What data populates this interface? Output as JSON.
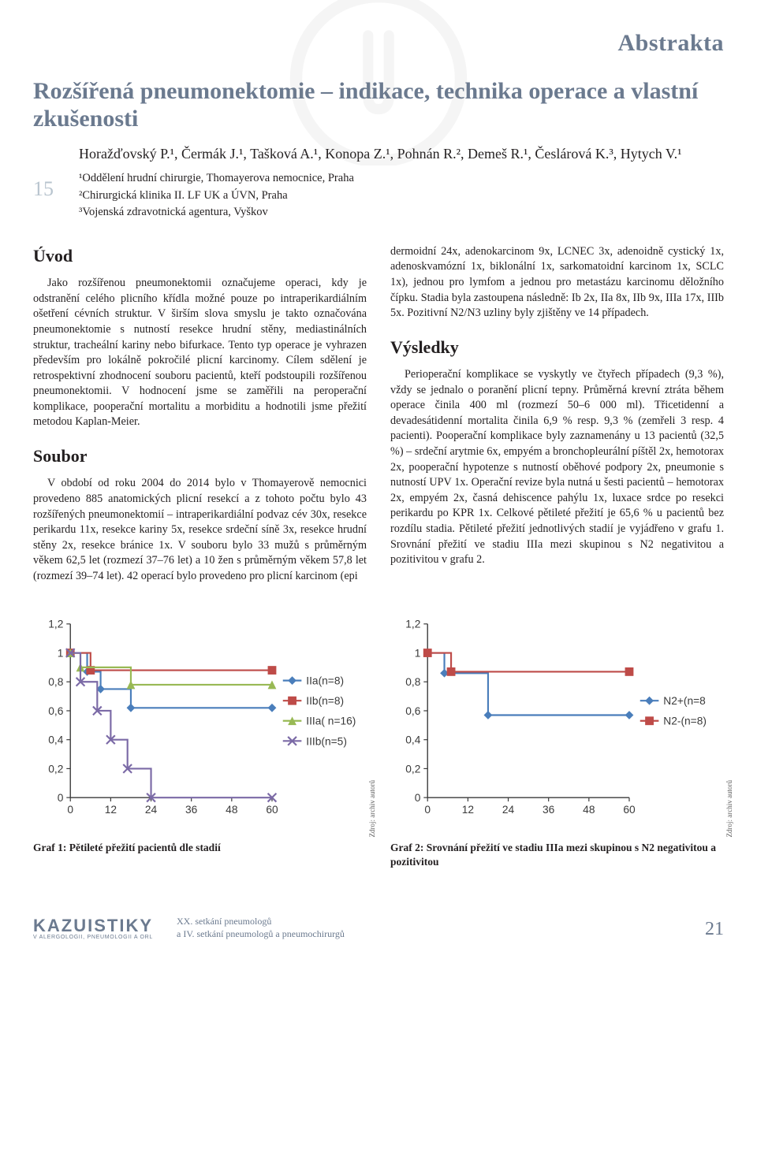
{
  "section_label": "Abstrakta",
  "article_title": "Rozšířená pneumonektomie – indikace, technika operace a vlastní zkušenosti",
  "side_page_num": "15",
  "authors": "Horažďovský P.¹, Čermák J.¹, Tašková A.¹, Konopa Z.¹, Pohnán R.², Demeš R.¹, Česlárová K.³, Hytych V.¹",
  "affil1": "¹Oddělení hrudní chirurgie, Thomayerova nemocnice, Praha",
  "affil2": "²Chirurgická klinika II. LF UK a ÚVN, Praha",
  "affil3": "³Vojenská zdravotnická agentura, Vyškov",
  "h_uvod": "Úvod",
  "p_uvod": "Jako rozšířenou pneumonektomii označujeme operaci, kdy je odstranění celého plicního křídla možné pouze po intraperikardiálním ošetření cévních struktur. V širším slova smyslu je takto označována pneumonektomie s nutností resekce hrudní stěny, mediastinálních struktur, tracheální kariny nebo bifurkace. Tento typ operace je vyhrazen především pro lokálně pokročilé plicní karcinomy. Cílem sdělení je retrospektivní zhodnocení souboru pacientů, kteří podstoupili rozšířenou pneumonektomii. V hodnocení jsme se zaměřili na peroperační komplikace, pooperační mortalitu a morbiditu a hodnotili jsme přežití metodou Kaplan-Meier.",
  "h_soubor": "Soubor",
  "p_soubor": "V období od roku 2004 do 2014 bylo v Thomayerově nemocnici provedeno 885 anatomických plicní resekcí a z tohoto počtu bylo 43 rozšířených pneumonektomií – intraperikardiální podvaz cév 30x, resekce perikardu 11x, resekce kariny 5x, resekce srdeční síně 3x, resekce hrudní stěny 2x, resekce bránice 1x. V souboru bylo 33 mužů s průměrným věkem 62,5 let (rozmezí 37–76 let) a 10 žen s průměrným věkem 57,8 let (rozmezí 39–74 let). 42 operací bylo provedeno pro plicní karcinom (epi",
  "p_right_top": "dermoidní 24x, adenokarcinom 9x, LCNEC 3x, adenoidně cystický 1x, adenoskvamózní 1x, biklonální 1x, sarkomatoidní karcinom 1x, SCLC 1x), jednou pro lymfom a jednou pro metastázu karcinomu děložního čípku. Stadia byla zastoupena následně: Ib 2x, IIa 8x, IIb 9x, IIIa 17x, IIIb 5x. Pozitivní N2/N3 uzliny byly zjištěny ve 14 případech.",
  "h_vysledky": "Výsledky",
  "p_vysledky": "Perioperační komplikace se vyskytly ve čtyřech případech (9,3 %), vždy se jednalo o poranění plicní tepny. Průměrná krevní ztráta během operace činila 400 ml (rozmezí 50–6 000 ml). Třicetidenní a devadesátidenní mortalita činila 6,9 % resp. 9,3 % (zemřeli 3 resp. 4 pacienti). Pooperační komplikace byly zaznamenány u 13 pacientů (32,5 %) – srdeční arytmie 6x, empyém a bronchopleurální píštěl 2x, hemotorax 2x, pooperační hypotenze s nutností oběhové podpory 2x, pneumonie s nutností UPV 1x. Operační revize byla nutná u šesti pacientů – hemotorax 2x, empyém 2x, časná dehiscence pahýlu 1x, luxace srdce po resekci perikardu po KPR 1x. Celkové pětileté přežití je 65,6 % u pacientů bez rozdílu stadia. Pětileté přežití jednotlivých stadií je vyjádřeno v grafu 1. Srovnání přežití ve stadiu IIIa mezi skupinou s N2 negativitou a pozitivitou v grafu 2.",
  "src_label": "Zdroj: archiv autorů",
  "chart1": {
    "type": "line-step",
    "xticks": [
      0,
      12,
      24,
      36,
      48,
      60
    ],
    "yticks_labels": [
      "0",
      "0,2",
      "0,4",
      "0,6",
      "0,8",
      "1",
      "1,2"
    ],
    "yticks": [
      0,
      0.2,
      0.4,
      0.6,
      0.8,
      1.0,
      1.2
    ],
    "ylim": [
      0,
      1.2
    ],
    "axis_color": "#3a3a3a",
    "grid": false,
    "marker_size": 5.5,
    "line_width": 2.2,
    "tick_fontsize": 14,
    "legend_fontsize": 14,
    "series": [
      {
        "label": "IIa(n=8)",
        "color": "#4a7ebb",
        "marker": "diamond",
        "x": [
          0,
          5,
          9,
          18,
          60
        ],
        "y": [
          1.0,
          0.87,
          0.75,
          0.62,
          0.62
        ]
      },
      {
        "label": "IIb(n=8)",
        "color": "#be4b48",
        "marker": "square",
        "x": [
          0,
          6,
          60
        ],
        "y": [
          1.0,
          0.88,
          0.88
        ]
      },
      {
        "label": "IIIa( n=16)",
        "color": "#98b954",
        "marker": "triangle",
        "x": [
          0,
          3,
          18,
          60
        ],
        "y": [
          1.0,
          0.9,
          0.78,
          0.78
        ]
      },
      {
        "label": "IIIb(n=5)",
        "color": "#7b6aa6",
        "marker": "x",
        "x": [
          0,
          3,
          8,
          12,
          17,
          24,
          60
        ],
        "y": [
          1.0,
          0.8,
          0.6,
          0.4,
          0.2,
          0.0,
          0.0
        ]
      }
    ],
    "caption": "Graf 1: Pětileté přežití pacientů dle stadií"
  },
  "chart2": {
    "type": "line-step",
    "xticks": [
      0,
      12,
      24,
      36,
      48,
      60
    ],
    "yticks_labels": [
      "0",
      "0,2",
      "0,4",
      "0,6",
      "0,8",
      "1",
      "1,2"
    ],
    "yticks": [
      0,
      0.2,
      0.4,
      0.6,
      0.8,
      1.0,
      1.2
    ],
    "ylim": [
      0,
      1.2
    ],
    "axis_color": "#3a3a3a",
    "grid": false,
    "marker_size": 5.5,
    "line_width": 2.2,
    "tick_fontsize": 14,
    "legend_fontsize": 14,
    "series": [
      {
        "label": "N2+(n=8",
        "color": "#4a7ebb",
        "marker": "diamond",
        "x": [
          0,
          5,
          18,
          60
        ],
        "y": [
          1.0,
          0.86,
          0.57,
          0.57
        ]
      },
      {
        "label": "N2-(n=8)",
        "color": "#be4b48",
        "marker": "square",
        "x": [
          0,
          7,
          60
        ],
        "y": [
          1.0,
          0.87,
          0.87
        ]
      }
    ],
    "caption": "Graf 2: Srovnání přežití ve stadiu IIIa mezi skupinou s N2 negativitou a pozitivitou"
  },
  "footer": {
    "brand_big": "KAZUISTIKY",
    "brand_sub": "V ALERGOLOGII, PNEUMOLOGII A ORL",
    "mid1": "XX. setkání pneumologů",
    "mid2": "a IV. setkání pneumologů a pneumochirurgů",
    "page": "21"
  }
}
